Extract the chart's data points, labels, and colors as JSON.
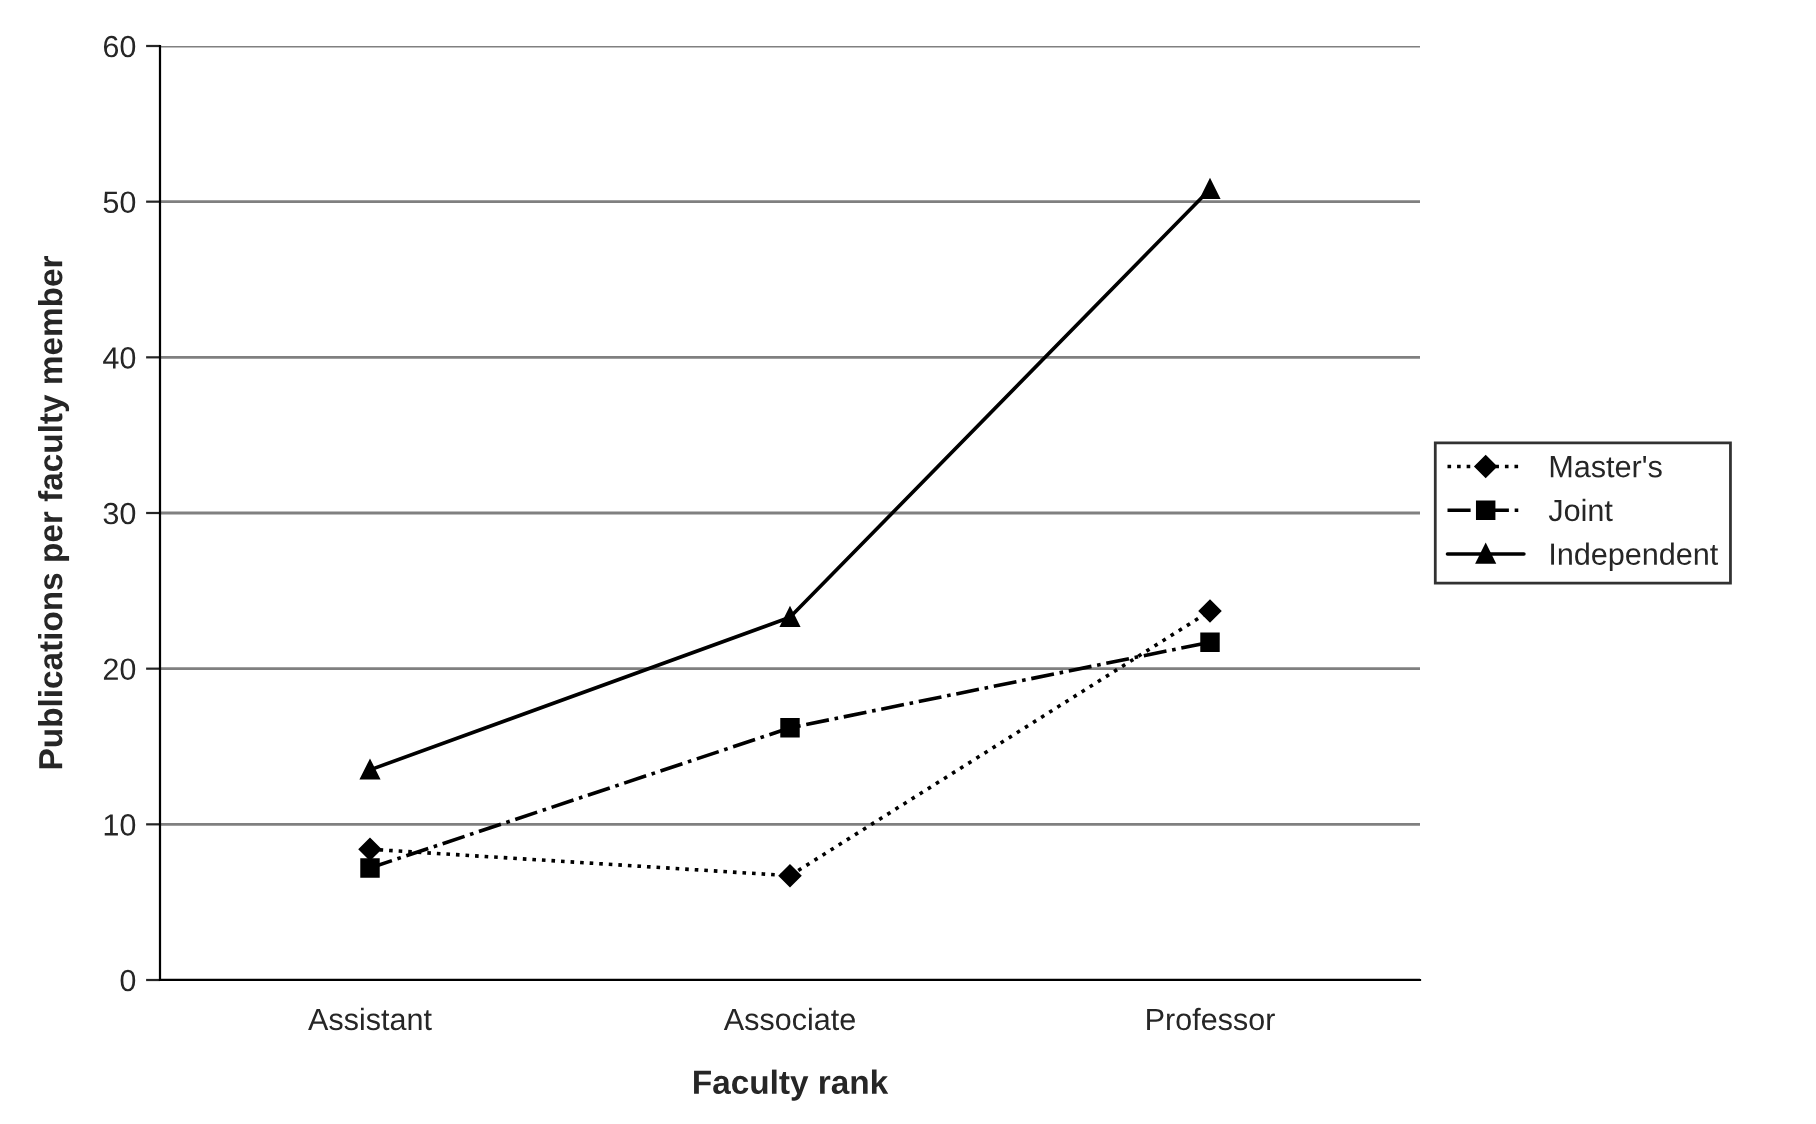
{
  "chart_data": {
    "type": "line",
    "xlabel": "Faculty rank",
    "ylabel": "Publications per faculty member",
    "categories": [
      "Assistant",
      "Associate",
      "Professor"
    ],
    "series": [
      {
        "name": "Master's",
        "color": "#000000",
        "values": [
          8.4,
          6.7,
          23.7
        ],
        "marker": "diamond",
        "line_style": "dotted"
      },
      {
        "name": "Joint",
        "color": "#000000",
        "values": [
          7.2,
          16.2,
          21.7
        ],
        "marker": "square",
        "line_style": "dashdot"
      },
      {
        "name": "Independent",
        "color": "#000000",
        "values": [
          13.5,
          23.3,
          50.8
        ],
        "marker": "triangle",
        "line_style": "solid"
      }
    ],
    "ylim": [
      0,
      60
    ],
    "yticks": [
      0,
      10,
      20,
      30,
      40,
      50,
      60
    ],
    "grid": "y",
    "legend": "right"
  }
}
